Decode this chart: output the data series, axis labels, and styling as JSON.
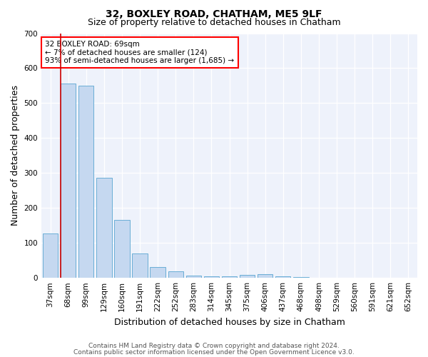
{
  "title": "32, BOXLEY ROAD, CHATHAM, ME5 9LF",
  "subtitle": "Size of property relative to detached houses in Chatham",
  "xlabel": "Distribution of detached houses by size in Chatham",
  "ylabel": "Number of detached properties",
  "categories": [
    "37sqm",
    "68sqm",
    "99sqm",
    "129sqm",
    "160sqm",
    "191sqm",
    "222sqm",
    "252sqm",
    "283sqm",
    "314sqm",
    "345sqm",
    "375sqm",
    "406sqm",
    "437sqm",
    "468sqm",
    "498sqm",
    "529sqm",
    "560sqm",
    "591sqm",
    "621sqm",
    "652sqm"
  ],
  "values": [
    127,
    556,
    550,
    287,
    165,
    70,
    30,
    18,
    7,
    5,
    5,
    8,
    10,
    5,
    2,
    1,
    1,
    0,
    0,
    0,
    0
  ],
  "bar_color": "#c5d8f0",
  "bar_edge_color": "#6aaed6",
  "highlight_color": "#cc0000",
  "highlight_index": 1,
  "annotation_text": "32 BOXLEY ROAD: 69sqm\n← 7% of detached houses are smaller (124)\n93% of semi-detached houses are larger (1,685) →",
  "footer1": "Contains HM Land Registry data © Crown copyright and database right 2024.",
  "footer2": "Contains public sector information licensed under the Open Government Licence v3.0.",
  "ylim": [
    0,
    700
  ],
  "yticks": [
    0,
    100,
    200,
    300,
    400,
    500,
    600,
    700
  ],
  "plot_bg_color": "#eef2fb",
  "title_fontsize": 10,
  "subtitle_fontsize": 9,
  "axis_label_fontsize": 9,
  "tick_fontsize": 7.5,
  "footer_fontsize": 6.5
}
